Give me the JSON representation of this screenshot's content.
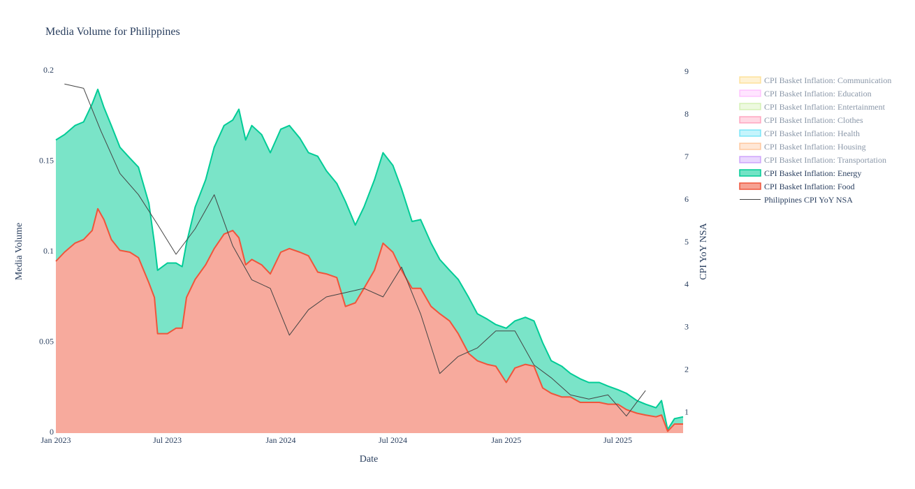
{
  "chart_data": {
    "type": "area",
    "title": "Media Volume for Philippines",
    "xlabel": "Date",
    "ylabel": "Media Volume",
    "y2label": "CPI YoY NSA",
    "x_range": [
      "2023-01-01",
      "2025-10-15"
    ],
    "ylim": [
      0,
      0.2
    ],
    "y2lim": [
      0.5,
      9.0
    ],
    "x_ticks": [
      {
        "date": "2023-01-01",
        "label": "Jan 2023"
      },
      {
        "date": "2023-07-01",
        "label": "Jul 2023"
      },
      {
        "date": "2024-01-01",
        "label": "Jan 2024"
      },
      {
        "date": "2024-07-01",
        "label": "Jul 2024"
      },
      {
        "date": "2025-01-01",
        "label": "Jan 2025"
      },
      {
        "date": "2025-07-01",
        "label": "Jul 2025"
      }
    ],
    "y_ticks": [
      {
        "value": 0,
        "label": "0"
      },
      {
        "value": 0.05,
        "label": "0.05"
      },
      {
        "value": 0.1,
        "label": "0.1"
      },
      {
        "value": 0.15,
        "label": "0.15"
      },
      {
        "value": 0.2,
        "label": "0.2"
      }
    ],
    "y2_ticks": [
      {
        "value": 1,
        "label": "1"
      },
      {
        "value": 2,
        "label": "2"
      },
      {
        "value": 3,
        "label": "3"
      },
      {
        "value": 4,
        "label": "4"
      },
      {
        "value": 5,
        "label": "5"
      },
      {
        "value": 6,
        "label": "6"
      },
      {
        "value": 7,
        "label": "7"
      },
      {
        "value": 8,
        "label": "8"
      },
      {
        "value": 9,
        "label": "9"
      }
    ],
    "legend_position": "right",
    "series": [
      {
        "name": "CPI Basket Inflation: Communication",
        "color": "#FECB52",
        "visible": false
      },
      {
        "name": "CPI Basket Inflation: Education",
        "color": "#FF97FF",
        "visible": false
      },
      {
        "name": "CPI Basket Inflation: Entertainment",
        "color": "#B6E880",
        "visible": false
      },
      {
        "name": "CPI Basket Inflation: Clothes",
        "color": "#FF6692",
        "visible": false
      },
      {
        "name": "CPI Basket Inflation: Health",
        "color": "#19D3F3",
        "visible": false
      },
      {
        "name": "CPI Basket Inflation: Housing",
        "color": "#FFA15A",
        "visible": false
      },
      {
        "name": "CPI Basket Inflation: Transportation",
        "color": "#AB63FA",
        "visible": false
      },
      {
        "name": "CPI Basket Inflation: Energy",
        "color": "#00CC96",
        "visible": true,
        "stacked_total": [
          [
            "2023-01-01",
            0.162
          ],
          [
            "2023-01-15",
            0.165
          ],
          [
            "2023-02-01",
            0.17
          ],
          [
            "2023-02-15",
            0.172
          ],
          [
            "2023-03-01",
            0.182
          ],
          [
            "2023-03-10",
            0.19
          ],
          [
            "2023-03-20",
            0.18
          ],
          [
            "2023-04-01",
            0.17
          ],
          [
            "2023-04-15",
            0.158
          ],
          [
            "2023-05-01",
            0.152
          ],
          [
            "2023-05-15",
            0.147
          ],
          [
            "2023-06-01",
            0.127
          ],
          [
            "2023-06-10",
            0.105
          ],
          [
            "2023-06-15",
            0.09
          ],
          [
            "2023-07-01",
            0.094
          ],
          [
            "2023-07-15",
            0.094
          ],
          [
            "2023-07-25",
            0.092
          ],
          [
            "2023-08-01",
            0.105
          ],
          [
            "2023-08-15",
            0.125
          ],
          [
            "2023-09-01",
            0.14
          ],
          [
            "2023-09-15",
            0.158
          ],
          [
            "2023-10-01",
            0.17
          ],
          [
            "2023-10-15",
            0.173
          ],
          [
            "2023-10-25",
            0.179
          ],
          [
            "2023-11-05",
            0.162
          ],
          [
            "2023-11-15",
            0.17
          ],
          [
            "2023-12-01",
            0.165
          ],
          [
            "2023-12-15",
            0.155
          ],
          [
            "2024-01-01",
            0.168
          ],
          [
            "2024-01-15",
            0.17
          ],
          [
            "2024-02-01",
            0.163
          ],
          [
            "2024-02-15",
            0.155
          ],
          [
            "2024-03-01",
            0.153
          ],
          [
            "2024-03-15",
            0.145
          ],
          [
            "2024-04-01",
            0.138
          ],
          [
            "2024-04-15",
            0.128
          ],
          [
            "2024-05-01",
            0.115
          ],
          [
            "2024-05-15",
            0.125
          ],
          [
            "2024-06-01",
            0.14
          ],
          [
            "2024-06-15",
            0.155
          ],
          [
            "2024-07-01",
            0.148
          ],
          [
            "2024-07-15",
            0.135
          ],
          [
            "2024-08-01",
            0.117
          ],
          [
            "2024-08-15",
            0.118
          ],
          [
            "2024-09-01",
            0.105
          ],
          [
            "2024-09-15",
            0.096
          ],
          [
            "2024-10-01",
            0.09
          ],
          [
            "2024-10-15",
            0.085
          ],
          [
            "2024-11-01",
            0.075
          ],
          [
            "2024-11-15",
            0.066
          ],
          [
            "2024-12-01",
            0.063
          ],
          [
            "2024-12-15",
            0.06
          ],
          [
            "2025-01-01",
            0.058
          ],
          [
            "2025-01-15",
            0.062
          ],
          [
            "2025-02-01",
            0.064
          ],
          [
            "2025-02-15",
            0.062
          ],
          [
            "2025-03-01",
            0.05
          ],
          [
            "2025-03-15",
            0.04
          ],
          [
            "2025-04-01",
            0.037
          ],
          [
            "2025-04-15",
            0.033
          ],
          [
            "2025-05-01",
            0.03
          ],
          [
            "2025-05-15",
            0.028
          ],
          [
            "2025-06-01",
            0.028
          ],
          [
            "2025-06-15",
            0.026
          ],
          [
            "2025-07-01",
            0.024
          ],
          [
            "2025-07-15",
            0.022
          ],
          [
            "2025-08-01",
            0.018
          ],
          [
            "2025-08-15",
            0.016
          ],
          [
            "2025-09-01",
            0.014
          ],
          [
            "2025-09-10",
            0.018
          ],
          [
            "2025-09-20",
            0.002
          ],
          [
            "2025-10-01",
            0.008
          ],
          [
            "2025-10-15",
            0.009
          ]
        ]
      },
      {
        "name": "CPI Basket Inflation: Food",
        "color": "#EF553B",
        "visible": true,
        "values": [
          [
            "2023-01-01",
            0.095
          ],
          [
            "2023-01-15",
            0.1
          ],
          [
            "2023-02-01",
            0.105
          ],
          [
            "2023-02-15",
            0.107
          ],
          [
            "2023-03-01",
            0.112
          ],
          [
            "2023-03-10",
            0.124
          ],
          [
            "2023-03-20",
            0.118
          ],
          [
            "2023-04-01",
            0.107
          ],
          [
            "2023-04-15",
            0.101
          ],
          [
            "2023-05-01",
            0.1
          ],
          [
            "2023-05-15",
            0.097
          ],
          [
            "2023-06-01",
            0.083
          ],
          [
            "2023-06-10",
            0.075
          ],
          [
            "2023-06-15",
            0.055
          ],
          [
            "2023-07-01",
            0.055
          ],
          [
            "2023-07-15",
            0.058
          ],
          [
            "2023-07-25",
            0.058
          ],
          [
            "2023-08-01",
            0.075
          ],
          [
            "2023-08-15",
            0.085
          ],
          [
            "2023-09-01",
            0.093
          ],
          [
            "2023-09-15",
            0.102
          ],
          [
            "2023-10-01",
            0.11
          ],
          [
            "2023-10-15",
            0.112
          ],
          [
            "2023-10-25",
            0.108
          ],
          [
            "2023-11-05",
            0.093
          ],
          [
            "2023-11-15",
            0.096
          ],
          [
            "2023-12-01",
            0.093
          ],
          [
            "2023-12-15",
            0.088
          ],
          [
            "2024-01-01",
            0.1
          ],
          [
            "2024-01-15",
            0.102
          ],
          [
            "2024-02-01",
            0.1
          ],
          [
            "2024-02-15",
            0.098
          ],
          [
            "2024-03-01",
            0.089
          ],
          [
            "2024-03-15",
            0.088
          ],
          [
            "2024-04-01",
            0.086
          ],
          [
            "2024-04-15",
            0.07
          ],
          [
            "2024-05-01",
            0.072
          ],
          [
            "2024-05-15",
            0.08
          ],
          [
            "2024-06-01",
            0.09
          ],
          [
            "2024-06-15",
            0.105
          ],
          [
            "2024-07-01",
            0.1
          ],
          [
            "2024-07-15",
            0.09
          ],
          [
            "2024-08-01",
            0.08
          ],
          [
            "2024-08-15",
            0.08
          ],
          [
            "2024-09-01",
            0.07
          ],
          [
            "2024-09-15",
            0.066
          ],
          [
            "2024-10-01",
            0.062
          ],
          [
            "2024-10-15",
            0.055
          ],
          [
            "2024-11-01",
            0.044
          ],
          [
            "2024-11-15",
            0.04
          ],
          [
            "2024-12-01",
            0.038
          ],
          [
            "2024-12-15",
            0.037
          ],
          [
            "2025-01-01",
            0.028
          ],
          [
            "2025-01-15",
            0.036
          ],
          [
            "2025-02-01",
            0.038
          ],
          [
            "2025-02-15",
            0.037
          ],
          [
            "2025-03-01",
            0.025
          ],
          [
            "2025-03-15",
            0.022
          ],
          [
            "2025-04-01",
            0.02
          ],
          [
            "2025-04-15",
            0.02
          ],
          [
            "2025-05-01",
            0.017
          ],
          [
            "2025-05-15",
            0.017
          ],
          [
            "2025-06-01",
            0.017
          ],
          [
            "2025-06-15",
            0.016
          ],
          [
            "2025-07-01",
            0.016
          ],
          [
            "2025-07-15",
            0.013
          ],
          [
            "2025-08-01",
            0.011
          ],
          [
            "2025-08-15",
            0.01
          ],
          [
            "2025-09-01",
            0.009
          ],
          [
            "2025-09-10",
            0.01
          ],
          [
            "2025-09-20",
            0.001
          ],
          [
            "2025-10-01",
            0.005
          ],
          [
            "2025-10-15",
            0.005
          ]
        ]
      },
      {
        "name": "Philippines CPI YoY NSA",
        "color": "#444444",
        "visible": true,
        "axis": "y2",
        "values": [
          [
            "2023-01-15",
            8.7
          ],
          [
            "2023-02-15",
            8.6
          ],
          [
            "2023-03-15",
            7.6
          ],
          [
            "2023-04-15",
            6.6
          ],
          [
            "2023-05-15",
            6.1
          ],
          [
            "2023-06-15",
            5.4
          ],
          [
            "2023-07-15",
            4.7
          ],
          [
            "2023-08-15",
            5.3
          ],
          [
            "2023-09-15",
            6.1
          ],
          [
            "2023-10-15",
            4.9
          ],
          [
            "2023-11-15",
            4.1
          ],
          [
            "2023-12-15",
            3.9
          ],
          [
            "2024-01-15",
            2.8
          ],
          [
            "2024-02-15",
            3.4
          ],
          [
            "2024-03-15",
            3.7
          ],
          [
            "2024-04-15",
            3.8
          ],
          [
            "2024-05-15",
            3.9
          ],
          [
            "2024-06-15",
            3.7
          ],
          [
            "2024-07-15",
            4.4
          ],
          [
            "2024-08-15",
            3.3
          ],
          [
            "2024-09-15",
            1.9
          ],
          [
            "2024-10-15",
            2.3
          ],
          [
            "2024-11-15",
            2.5
          ],
          [
            "2024-12-15",
            2.9
          ],
          [
            "2025-01-15",
            2.9
          ],
          [
            "2025-02-15",
            2.1
          ],
          [
            "2025-03-15",
            1.8
          ],
          [
            "2025-04-15",
            1.4
          ],
          [
            "2025-05-15",
            1.3
          ],
          [
            "2025-06-15",
            1.4
          ],
          [
            "2025-07-15",
            0.9
          ],
          [
            "2025-08-15",
            1.5
          ]
        ]
      }
    ]
  }
}
